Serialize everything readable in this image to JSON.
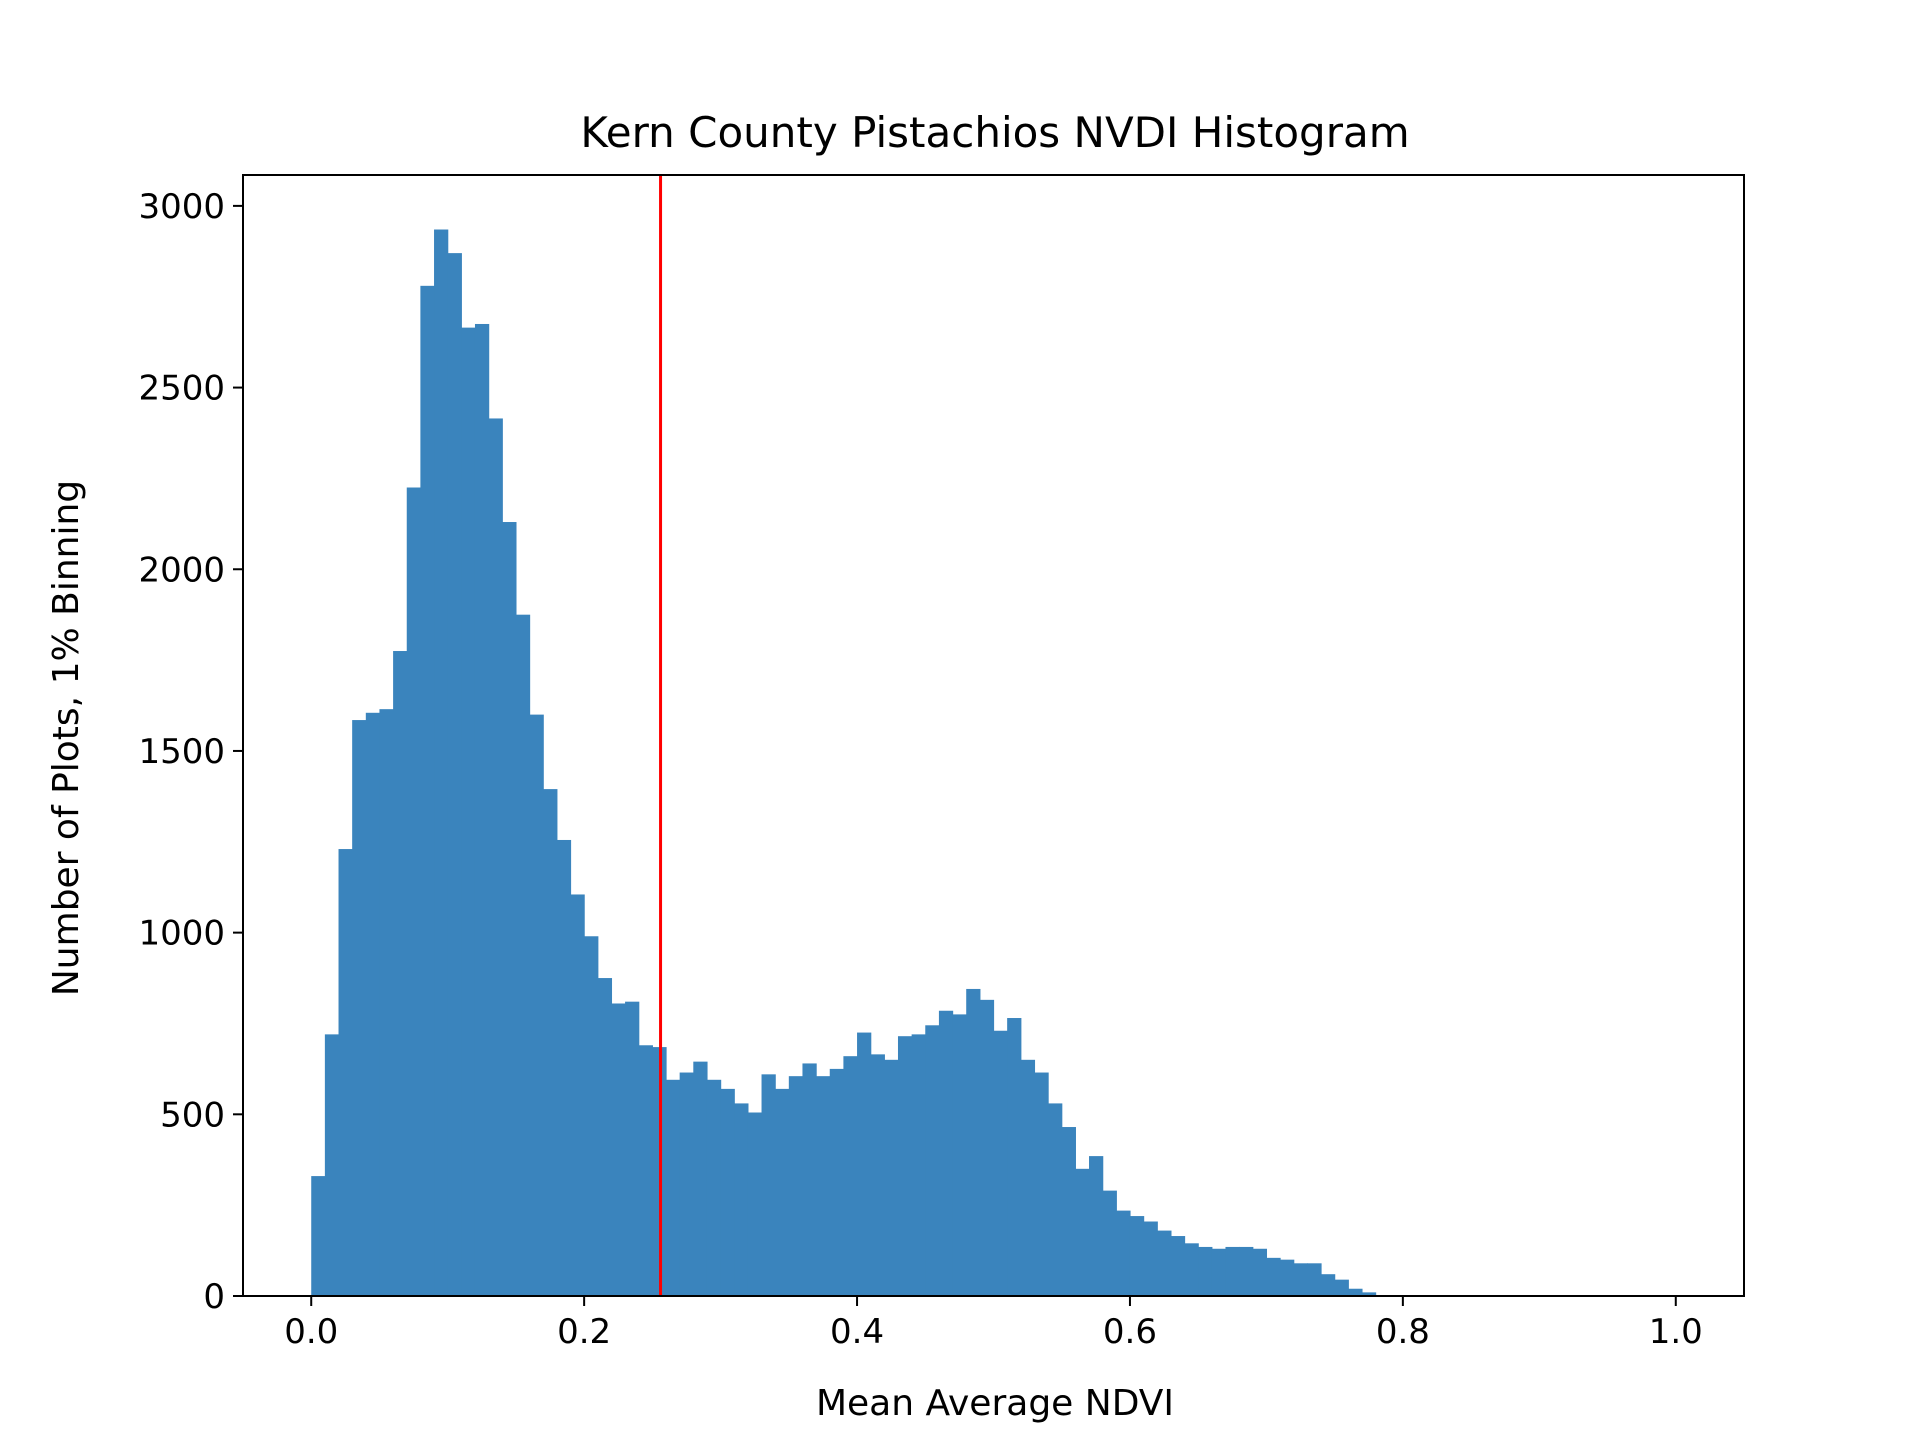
{
  "chart_data": {
    "type": "bar",
    "title": "Kern County Pistachios NVDI Histogram",
    "xlabel": "Mean Average NDVI",
    "ylabel": "Number of Plots, 1% Binning",
    "xlim": [
      -0.05,
      1.05
    ],
    "ylim": [
      0,
      3085
    ],
    "xticks": [
      0.0,
      0.2,
      0.4,
      0.6,
      0.8,
      1.0
    ],
    "xtick_labels": [
      "0.0",
      "0.2",
      "0.4",
      "0.6",
      "0.8",
      "1.0"
    ],
    "yticks": [
      0,
      500,
      1000,
      1500,
      2000,
      2500,
      3000
    ],
    "ytick_labels": [
      "0",
      "500",
      "1000",
      "1500",
      "2000",
      "2500",
      "3000"
    ],
    "grid": false,
    "bar_color": "#3a84bd",
    "bin_width": 0.01,
    "bin_start": 0.0,
    "counts": [
      330,
      720,
      1230,
      1585,
      1605,
      1615,
      1775,
      2225,
      2780,
      2935,
      2870,
      2665,
      2675,
      2415,
      2130,
      1875,
      1600,
      1395,
      1255,
      1105,
      990,
      875,
      805,
      810,
      690,
      685,
      595,
      615,
      645,
      595,
      570,
      530,
      505,
      610,
      570,
      605,
      640,
      605,
      625,
      660,
      725,
      665,
      650,
      715,
      720,
      745,
      785,
      775,
      845,
      815,
      730,
      765,
      650,
      615,
      530,
      465,
      350,
      385,
      290,
      235,
      220,
      205,
      180,
      165,
      145,
      135,
      130,
      135,
      135,
      130,
      105,
      100,
      90,
      90,
      60,
      45,
      20,
      10,
      0,
      0,
      0,
      0,
      0,
      0,
      0,
      0,
      0,
      0,
      0,
      0,
      0,
      0,
      0,
      0,
      0,
      0,
      0,
      0,
      0,
      0
    ],
    "annotations": [
      {
        "type": "vline",
        "x": 0.256,
        "color": "#ff0000"
      }
    ]
  }
}
